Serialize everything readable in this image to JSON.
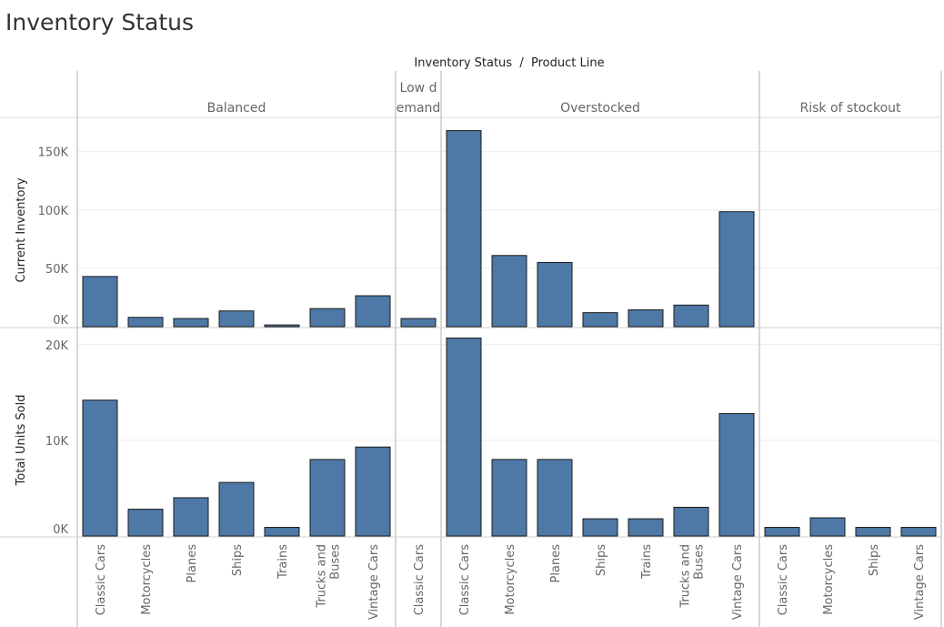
{
  "dashboard": {
    "title": "Inventory Status"
  },
  "chart_data": {
    "type": "bar",
    "title": "Inventory Status",
    "column_header": "Inventory Status  /  Product Line",
    "panes": [
      {
        "status": "Balanced",
        "label": "Balanced",
        "categories": [
          "Classic Cars",
          "Motorcycles",
          "Planes",
          "Ships",
          "Trains",
          "Trucks and Buses",
          "Vintage Cars"
        ],
        "category_lines": [
          [
            "Classic Cars"
          ],
          [
            "Motorcycles"
          ],
          [
            "Planes"
          ],
          [
            "Ships"
          ],
          [
            "Trains"
          ],
          [
            "Trucks and",
            "Buses"
          ],
          [
            "Vintage Cars"
          ]
        ],
        "current_inventory": [
          43000,
          8000,
          7000,
          13500,
          1500,
          15500,
          26500
        ],
        "total_units_sold": [
          14200,
          2800,
          4000,
          5600,
          900,
          8000,
          9300
        ]
      },
      {
        "status": "Low demand",
        "label_lines": [
          "Low d",
          "emand"
        ],
        "categories": [
          "Classic Cars"
        ],
        "category_lines": [
          [
            "Classic Cars"
          ]
        ],
        "current_inventory": [
          7000
        ],
        "total_units_sold": [
          0
        ]
      },
      {
        "status": "Overstocked",
        "label": "Overstocked",
        "categories": [
          "Classic Cars",
          "Motorcycles",
          "Planes",
          "Ships",
          "Trains",
          "Trucks and Buses",
          "Vintage Cars"
        ],
        "category_lines": [
          [
            "Classic Cars"
          ],
          [
            "Motorcycles"
          ],
          [
            "Planes"
          ],
          [
            "Ships"
          ],
          [
            "Trains"
          ],
          [
            "Trucks and",
            "Buses"
          ],
          [
            "Vintage Cars"
          ]
        ],
        "current_inventory": [
          168000,
          61000,
          55000,
          12000,
          14500,
          18500,
          98500
        ],
        "total_units_sold": [
          20700,
          8000,
          8000,
          1800,
          1800,
          3000,
          12800
        ]
      },
      {
        "status": "Risk of stockout",
        "label": "Risk of stockout",
        "categories": [
          "Classic Cars",
          "Motorcycles",
          "Ships",
          "Vintage Cars"
        ],
        "category_lines": [
          [
            "Classic Cars"
          ],
          [
            "Motorcycles"
          ],
          [
            "Ships"
          ],
          [
            "Vintage Cars"
          ]
        ],
        "current_inventory": [
          0,
          0,
          0,
          0
        ],
        "total_units_sold": [
          900,
          1900,
          900,
          900
        ]
      }
    ],
    "rows": [
      {
        "measure": "current_inventory",
        "ylabel": "Current Inventory",
        "ylim": [
          0,
          177000
        ],
        "ticks": [
          0,
          50000,
          100000,
          150000
        ],
        "tick_labels": [
          "0K",
          "50K",
          "100K",
          "150K"
        ]
      },
      {
        "measure": "total_units_sold",
        "ylabel": "Total Units Sold",
        "ylim": [
          0,
          21500
        ],
        "ticks": [
          0,
          10000,
          20000
        ],
        "tick_labels": [
          "0K",
          "10K",
          "20K"
        ]
      }
    ],
    "bar_color": "#4e79a7",
    "grid": true,
    "legend": "none"
  }
}
